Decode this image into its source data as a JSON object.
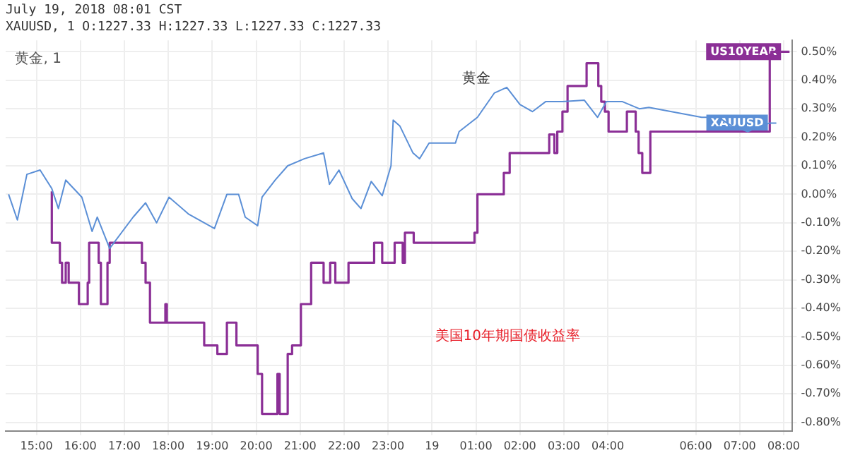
{
  "chart_data": {
    "type": "line",
    "title": "July 19, 2018 08:01 CST",
    "subtitle": "XAUUSD, 1 O:1227.33 H:1227.33 L:1227.33 C:1227.33",
    "series": [
      {
        "name": "XAUUSD",
        "color": "#5b8fd6",
        "x": [
          "2018-07-18T14:22",
          "2018-07-18T14:34",
          "2018-07-18T14:47",
          "2018-07-18T15:05",
          "2018-07-18T15:21",
          "2018-07-18T15:30",
          "2018-07-18T15:40",
          "2018-07-18T16:02",
          "2018-07-18T16:16",
          "2018-07-18T16:23",
          "2018-07-18T16:40",
          "2018-07-18T17:12",
          "2018-07-18T17:29",
          "2018-07-18T17:44",
          "2018-07-18T18:01",
          "2018-07-18T18:28",
          "2018-07-18T19:03",
          "2018-07-18T19:20",
          "2018-07-18T19:36",
          "2018-07-18T19:45",
          "2018-07-18T20:02",
          "2018-07-18T20:08",
          "2018-07-18T20:26",
          "2018-07-18T20:43",
          "2018-07-18T21:06",
          "2018-07-18T21:32",
          "2018-07-18T21:40",
          "2018-07-18T21:53",
          "2018-07-18T22:11",
          "2018-07-18T22:23",
          "2018-07-18T22:37",
          "2018-07-18T22:52",
          "2018-07-18T23:04",
          "2018-07-18T23:07",
          "2018-07-18T23:16",
          "2018-07-18T23:34",
          "2018-07-18T23:43",
          "2018-07-18T23:56",
          "2018-07-19T00:32",
          "2018-07-19T00:37",
          "2018-07-19T01:02",
          "2018-07-19T01:25",
          "2018-07-19T01:42",
          "2018-07-19T02:00",
          "2018-07-19T02:17",
          "2018-07-19T02:35",
          "2018-07-19T02:58",
          "2018-07-19T03:28",
          "2018-07-19T03:46",
          "2018-07-19T03:58",
          "2018-07-19T04:20",
          "2018-07-19T04:43",
          "2018-07-19T04:56",
          "2018-07-19T06:08",
          "2018-07-19T06:31",
          "2018-07-19T06:49",
          "2018-07-19T07:11",
          "2018-07-19T07:29",
          "2018-07-19T07:41",
          "2018-07-19T07:50"
        ],
        "values": [
          0.0,
          -0.09,
          0.07,
          0.085,
          0.02,
          -0.05,
          0.05,
          -0.01,
          -0.13,
          -0.08,
          -0.19,
          -0.08,
          -0.03,
          -0.1,
          -0.01,
          -0.07,
          -0.12,
          0.0,
          0.0,
          -0.08,
          -0.11,
          -0.01,
          0.05,
          0.1,
          0.125,
          0.145,
          0.035,
          0.085,
          -0.015,
          -0.05,
          0.045,
          -0.005,
          0.1,
          0.26,
          0.24,
          0.145,
          0.125,
          0.18,
          0.18,
          0.22,
          0.27,
          0.355,
          0.375,
          0.315,
          0.29,
          0.325,
          0.325,
          0.33,
          0.27,
          0.325,
          0.325,
          0.3,
          0.305,
          0.27,
          0.27,
          0.24,
          0.22,
          0.24,
          0.25,
          0.25
        ]
      },
      {
        "name": "US10YEAR",
        "color": "#8b2f96",
        "type": "step",
        "x": [
          "2018-07-18T15:21",
          "2018-07-18T15:32",
          "2018-07-18T15:35",
          "2018-07-18T15:40",
          "2018-07-18T15:44",
          "2018-07-18T15:58",
          "2018-07-18T16:10",
          "2018-07-18T16:12",
          "2018-07-18T16:25",
          "2018-07-18T16:28",
          "2018-07-18T16:37",
          "2018-07-18T16:40",
          "2018-07-18T17:24",
          "2018-07-18T17:29",
          "2018-07-18T17:35",
          "2018-07-18T17:56",
          "2018-07-18T17:58",
          "2018-07-18T18:49",
          "2018-07-18T19:07",
          "2018-07-18T19:20",
          "2018-07-18T19:33",
          "2018-07-18T20:02",
          "2018-07-18T20:08",
          "2018-07-18T20:29",
          "2018-07-18T20:32",
          "2018-07-18T20:43",
          "2018-07-18T20:49",
          "2018-07-18T21:01",
          "2018-07-18T21:15",
          "2018-07-18T21:32",
          "2018-07-18T21:41",
          "2018-07-18T21:48",
          "2018-07-18T22:06",
          "2018-07-18T22:41",
          "2018-07-18T22:52",
          "2018-07-18T23:09",
          "2018-07-18T23:20",
          "2018-07-18T23:23",
          "2018-07-18T23:35",
          "2018-07-19T00:58",
          "2018-07-19T01:02",
          "2018-07-19T01:38",
          "2018-07-19T01:46",
          "2018-07-19T02:40",
          "2018-07-19T02:47",
          "2018-07-19T02:51",
          "2018-07-19T02:58",
          "2018-07-19T03:05",
          "2018-07-19T03:31",
          "2018-07-19T03:47",
          "2018-07-19T03:51",
          "2018-07-19T03:56",
          "2018-07-19T04:01",
          "2018-07-19T04:26",
          "2018-07-19T04:38",
          "2018-07-19T04:42",
          "2018-07-19T04:47",
          "2018-07-19T04:58",
          "2018-07-19T06:01",
          "2018-07-19T07:41",
          "2018-07-19T07:43",
          "2018-07-19T08:08"
        ],
        "values": [
          0.01,
          -0.17,
          -0.24,
          -0.31,
          -0.24,
          -0.31,
          -0.385,
          -0.31,
          -0.17,
          -0.24,
          -0.385,
          -0.24,
          -0.17,
          -0.24,
          -0.31,
          -0.45,
          -0.385,
          -0.45,
          -0.53,
          -0.56,
          -0.45,
          -0.53,
          -0.63,
          -0.77,
          -0.63,
          -0.77,
          -0.56,
          -0.53,
          -0.385,
          -0.24,
          -0.31,
          -0.24,
          -0.31,
          -0.24,
          -0.17,
          -0.24,
          -0.17,
          -0.24,
          -0.135,
          -0.17,
          -0.135,
          0.0,
          0.075,
          0.145,
          0.21,
          0.145,
          0.22,
          0.29,
          0.38,
          0.46,
          0.38,
          0.325,
          0.29,
          0.22,
          0.29,
          0.22,
          0.145,
          0.075,
          0.22,
          0.22,
          0.49,
          0.5
        ]
      }
    ],
    "annotations": [
      "黄金, 1",
      "黄金",
      "美国10年期国债收益率"
    ],
    "xlim": [
      "2018-07-18T14:18",
      "2018-07-19T08:12"
    ],
    "xticks": [
      {
        "value": "2018-07-18T15:00",
        "label": "15:00"
      },
      {
        "value": "2018-07-18T16:00",
        "label": "16:00"
      },
      {
        "value": "2018-07-18T17:00",
        "label": "17:00"
      },
      {
        "value": "2018-07-18T18:00",
        "label": "18:00"
      },
      {
        "value": "2018-07-18T19:00",
        "label": "19:00"
      },
      {
        "value": "2018-07-18T20:00",
        "label": "20:00"
      },
      {
        "value": "2018-07-18T21:00",
        "label": "21:00"
      },
      {
        "value": "2018-07-18T22:00",
        "label": "22:00"
      },
      {
        "value": "2018-07-18T23:00",
        "label": "23:00"
      },
      {
        "value": "2018-07-19T00:00",
        "label": "19"
      },
      {
        "value": "2018-07-19T01:00",
        "label": "01:00"
      },
      {
        "value": "2018-07-19T02:00",
        "label": "02:00"
      },
      {
        "value": "2018-07-19T03:00",
        "label": "03:00"
      },
      {
        "value": "2018-07-19T04:00",
        "label": "04:00"
      },
      {
        "value": "2018-07-19T06:00",
        "label": "06:00"
      },
      {
        "value": "2018-07-19T07:00",
        "label": "07:00"
      },
      {
        "value": "2018-07-19T08:00",
        "label": "08:00"
      }
    ],
    "ylim": [
      -0.83,
      0.54
    ],
    "yticks": [
      {
        "value": -0.8,
        "label": "-0.80%"
      },
      {
        "value": -0.7,
        "label": "-0.70%"
      },
      {
        "value": -0.6,
        "label": "-0.60%"
      },
      {
        "value": -0.5,
        "label": "-0.50%"
      },
      {
        "value": -0.4,
        "label": "-0.40%"
      },
      {
        "value": -0.3,
        "label": "-0.30%"
      },
      {
        "value": -0.2,
        "label": "-0.20%"
      },
      {
        "value": -0.1,
        "label": "-0.10%"
      },
      {
        "value": 0,
        "label": "0.00%"
      },
      {
        "value": 0.1,
        "label": "0.10%"
      },
      {
        "value": 0.2,
        "label": "0.20%"
      },
      {
        "value": 0.3,
        "label": "0.30%"
      },
      {
        "value": 0.4,
        "label": "0.40%"
      },
      {
        "value": 0.5,
        "label": "0.50%"
      }
    ],
    "grid": true,
    "legend": false,
    "marker": "none"
  }
}
